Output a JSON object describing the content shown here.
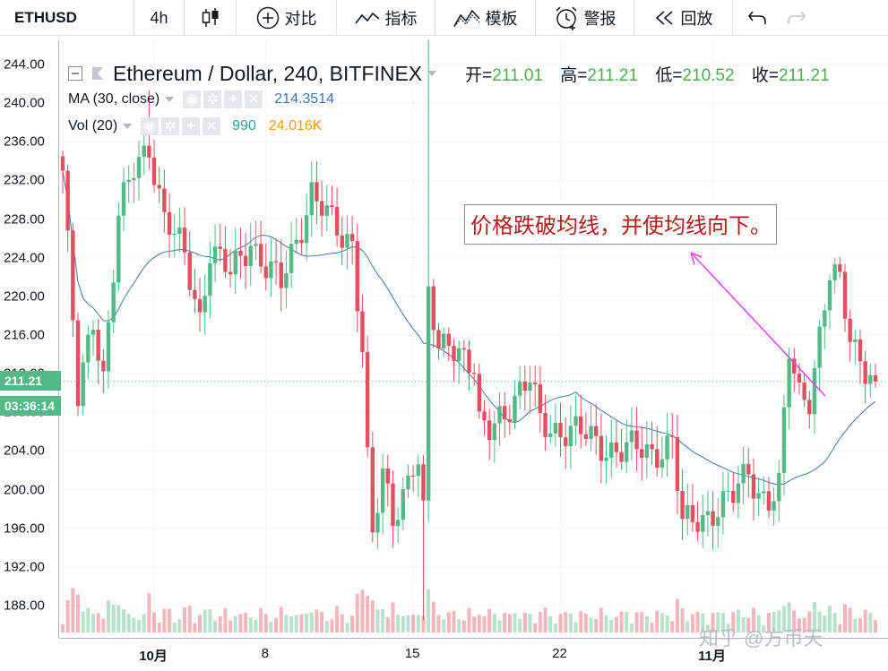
{
  "toolbar": {
    "symbol": "ETHUSD",
    "interval": "4h",
    "compare_label": "对比",
    "indicators_label": "指标",
    "templates_label": "模板",
    "alert_label": "警报",
    "replay_label": "回放"
  },
  "legend": {
    "title": "Ethereum / Dollar, 240, BITFINEX",
    "open_key": "开=",
    "open": "211.01",
    "high_key": "高=",
    "high": "211.21",
    "low_key": "低=",
    "low": "210.52",
    "close_key": "收=",
    "close": "211.21",
    "ma_label": "MA (30, close)",
    "ma_value": "214.3514",
    "vol_label": "Vol (20)",
    "vol_value": "990",
    "vol_ma_value": "24.016K"
  },
  "price_tag": {
    "price": "211.21",
    "countdown": "03:36:14"
  },
  "annotation": "价格跌破均线，并使均线向下。",
  "watermark": "知乎 @方币天",
  "colors": {
    "up": "#53b987",
    "down": "#e0505f",
    "ma": "#3c78b4",
    "arrow": "#e040fb",
    "price_tag": "#53b987"
  },
  "chart_data": {
    "type": "candlestick",
    "title": "Ethereum / Dollar, 240, BITFINEX",
    "ylim": [
      185,
      246
    ],
    "yticks": [
      "244.00",
      "240.00",
      "236.00",
      "232.00",
      "228.00",
      "224.00",
      "220.00",
      "216.00",
      "212.00",
      "208.00",
      "204.00",
      "200.00",
      "196.00",
      "192.00",
      "188.00"
    ],
    "xticks": [
      "10月",
      "8",
      "15",
      "22",
      "11月"
    ],
    "indicators": [
      "MA (30, close)",
      "Vol (20)"
    ],
    "keypoints": [
      [
        0,
        233
      ],
      [
        3,
        209
      ],
      [
        6,
        218
      ],
      [
        8,
        212
      ],
      [
        11,
        228
      ],
      [
        14,
        233
      ],
      [
        17,
        236
      ],
      [
        20,
        228
      ],
      [
        24,
        224
      ],
      [
        27,
        218
      ],
      [
        29,
        225
      ],
      [
        33,
        222
      ],
      [
        37,
        226
      ],
      [
        40,
        223
      ],
      [
        43,
        221
      ],
      [
        46,
        226
      ],
      [
        49,
        231
      ],
      [
        52,
        228
      ],
      [
        55,
        226
      ],
      [
        57,
        226
      ],
      [
        59,
        215
      ],
      [
        60,
        203
      ],
      [
        61,
        195
      ],
      [
        63,
        201
      ],
      [
        65,
        197
      ],
      [
        69,
        203
      ],
      [
        70,
        203
      ],
      [
        71,
        197
      ],
      [
        72,
        220
      ],
      [
        74,
        214
      ],
      [
        76,
        216
      ],
      [
        79,
        214
      ],
      [
        81,
        212
      ],
      [
        82,
        206
      ],
      [
        84,
        206
      ],
      [
        86,
        208
      ],
      [
        88,
        209
      ],
      [
        92,
        211
      ],
      [
        94,
        207
      ],
      [
        100,
        206
      ],
      [
        105,
        205
      ],
      [
        110,
        204
      ],
      [
        116,
        204
      ],
      [
        120,
        205
      ],
      [
        122,
        196
      ],
      [
        125,
        197
      ],
      [
        128,
        198
      ],
      [
        132,
        199
      ],
      [
        135,
        202
      ],
      [
        137,
        200
      ],
      [
        139,
        199
      ],
      [
        141,
        200
      ],
      [
        143,
        214
      ],
      [
        145,
        210
      ],
      [
        147,
        210
      ],
      [
        149,
        216
      ],
      [
        151,
        222
      ],
      [
        153,
        221
      ],
      [
        155,
        216
      ],
      [
        157,
        214
      ],
      [
        159,
        212
      ],
      [
        160,
        211.2
      ]
    ],
    "candles_count": 161
  }
}
